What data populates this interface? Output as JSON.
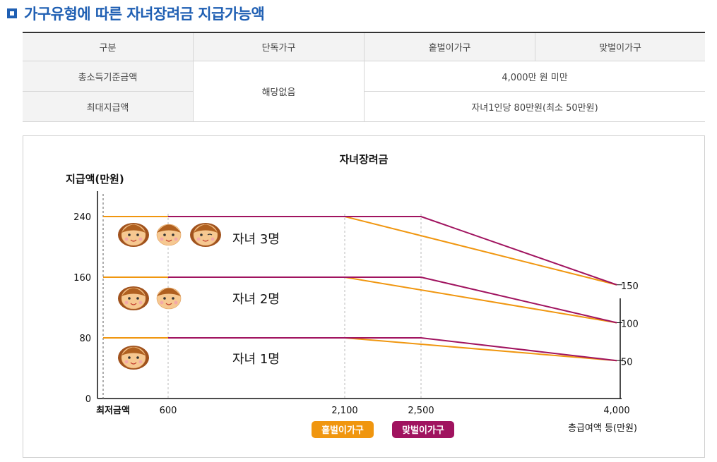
{
  "heading": "가구유형에 따른 자녀장려금 지급가능액",
  "table": {
    "headers": [
      "구분",
      "단독가구",
      "홑벌이가구",
      "맞벌이가구"
    ],
    "rows": [
      {
        "label": "총소득기준금액",
        "single": "해당없음",
        "value": "4,000만 원 미만"
      },
      {
        "label": "최대지급액",
        "single": "해당없음",
        "value": "자녀1인당 80만원(최소 50만원)"
      }
    ]
  },
  "chart_data": {
    "type": "line",
    "title": "자녀장려금",
    "ylabel": "지급액(만원)",
    "xlabel": "총급여액 등(만원)",
    "y_ticks": [
      "0",
      "80",
      "160",
      "240"
    ],
    "x_ticks": [
      "최저금액",
      "600",
      "2,100",
      "2,500",
      "4,000"
    ],
    "right_labels": [
      "150",
      "100",
      "50"
    ],
    "child_labels": [
      "자녀 3명",
      "자녀 2명",
      "자녀 1명"
    ],
    "x_points": [
      0,
      600,
      2100,
      2500,
      4000
    ],
    "series": [
      {
        "name": "홑벌이가구",
        "color": "#f0960f",
        "children": 3,
        "points": [
          [
            0,
            240
          ],
          [
            2100,
            240
          ],
          [
            4000,
            150
          ]
        ]
      },
      {
        "name": "홑벌이가구",
        "color": "#f0960f",
        "children": 2,
        "points": [
          [
            0,
            160
          ],
          [
            2100,
            160
          ],
          [
            4000,
            100
          ]
        ]
      },
      {
        "name": "홑벌이가구",
        "color": "#f0960f",
        "children": 1,
        "points": [
          [
            0,
            80
          ],
          [
            2100,
            80
          ],
          [
            4000,
            50
          ]
        ]
      },
      {
        "name": "맞벌이가구",
        "color": "#a0135f",
        "children": 3,
        "points": [
          [
            600,
            240
          ],
          [
            2500,
            240
          ],
          [
            4000,
            150
          ]
        ]
      },
      {
        "name": "맞벌이가구",
        "color": "#a0135f",
        "children": 2,
        "points": [
          [
            600,
            160
          ],
          [
            2500,
            160
          ],
          [
            4000,
            100
          ]
        ]
      },
      {
        "name": "맞벌이가구",
        "color": "#a0135f",
        "children": 1,
        "points": [
          [
            600,
            80
          ],
          [
            2500,
            80
          ],
          [
            4000,
            50
          ]
        ]
      }
    ],
    "legend": [
      {
        "label": "홑벌이가구",
        "color": "#f0960f"
      },
      {
        "label": "맞벌이가구",
        "color": "#a0135f"
      }
    ],
    "ylim": [
      0,
      240
    ],
    "grid": "dashed vertical at x ticks"
  }
}
